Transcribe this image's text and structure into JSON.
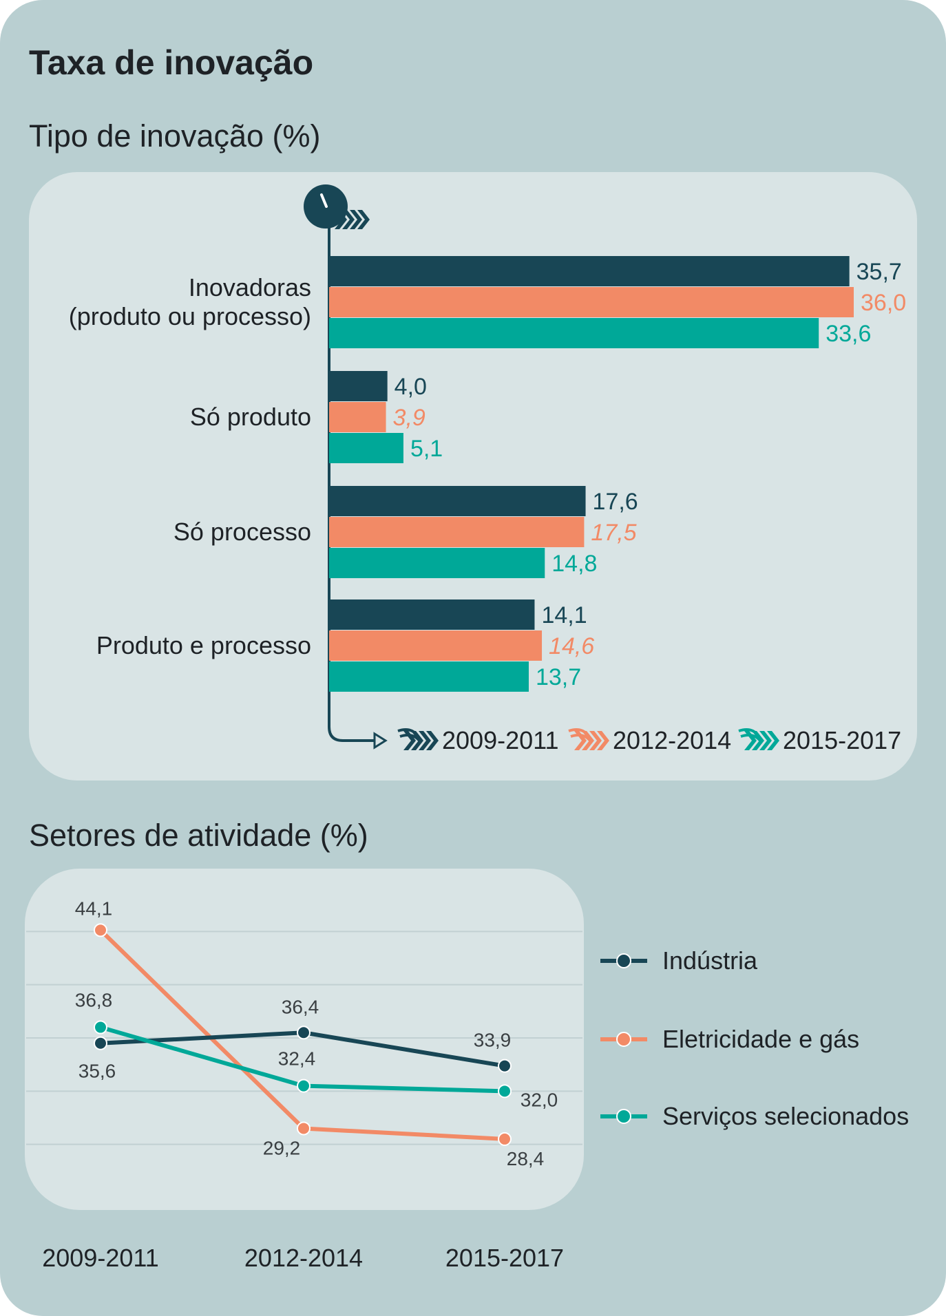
{
  "title": "Taxa de inovação",
  "colors": {
    "s1": "#184655",
    "s2": "#f28a66",
    "s3": "#00a898",
    "axis": "#184655",
    "grid": "#c2d0d2"
  },
  "chart_data": [
    {
      "type": "bar",
      "orientation": "horizontal",
      "title": "Tipo de inovação (%)",
      "categories": [
        [
          "Inovadoras",
          "(produto ou processo)"
        ],
        [
          "Só produto"
        ],
        [
          "Só processo"
        ],
        [
          "Produto e processo"
        ]
      ],
      "value_labels": [
        [
          "35,7",
          "36,0",
          "33,6"
        ],
        [
          "4,0",
          "3,9",
          "5,1"
        ],
        [
          "17,6",
          "17,5",
          "14,8"
        ],
        [
          "14,1",
          "14,6",
          "13,7"
        ]
      ],
      "series": [
        {
          "name": "2009-2011",
          "values": [
            35.7,
            4.0,
            17.6,
            14.1
          ]
        },
        {
          "name": "2012-2014",
          "values": [
            36.0,
            3.9,
            17.5,
            14.6
          ]
        },
        {
          "name": "2015-2017",
          "values": [
            33.6,
            5.1,
            14.8,
            13.7
          ]
        }
      ],
      "xlim": [
        0,
        36
      ],
      "legend": "bottom"
    },
    {
      "type": "line",
      "title": "Setores de atividade (%)",
      "x": [
        "2009-2011",
        "2012-2014",
        "2015-2017"
      ],
      "series": [
        {
          "name": "Indústria",
          "values": [
            35.6,
            36.4,
            33.9
          ],
          "labels": [
            "35,6",
            "36,4",
            "33,9"
          ]
        },
        {
          "name": "Eletricidade e gás",
          "values": [
            44.1,
            29.2,
            28.4
          ],
          "labels": [
            "44,1",
            "29,2",
            "28,4"
          ]
        },
        {
          "name": "Serviços selecionados",
          "values": [
            36.8,
            32.4,
            32.0
          ],
          "labels": [
            "36,8",
            "32,4",
            "32,0"
          ]
        }
      ],
      "ylim": [
        24,
        48
      ],
      "grid": true,
      "legend": "right"
    }
  ]
}
